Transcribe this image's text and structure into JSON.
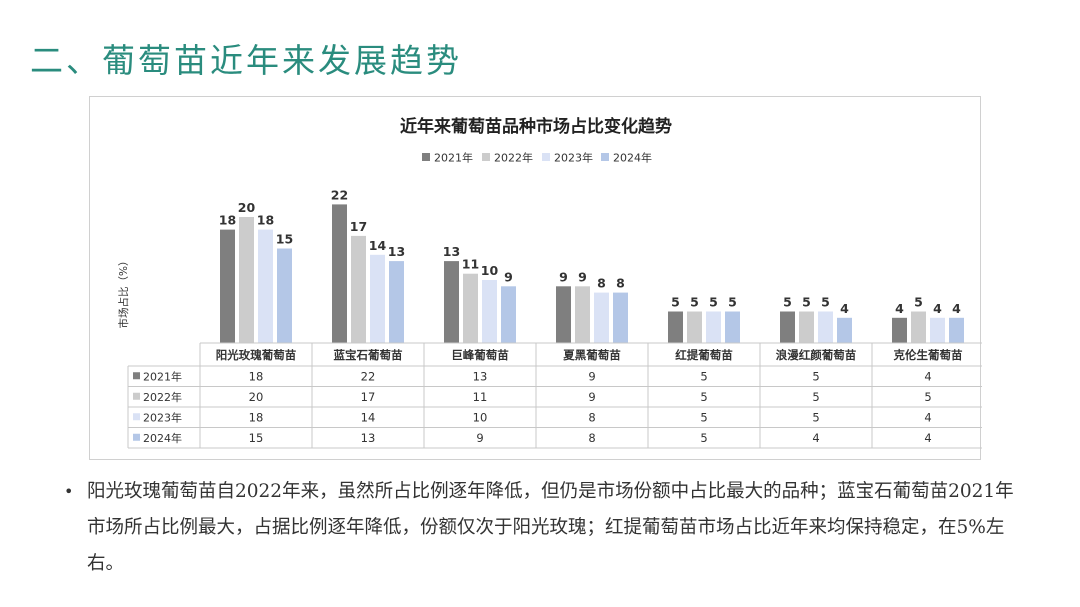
{
  "slide": {
    "title": "二、葡萄苗近年来发展趋势",
    "bullet_marker": "•",
    "bullet_text": "阳光玫瑰葡萄苗自2022年来，虽然所占比例逐年降低，但仍是市场份额中占比最大的品种；蓝宝石葡萄苗2021年市场所占比例最大，占据比例逐年降低，份额仅次于阳光玫瑰；红提葡萄苗市场占比近年来均保持稳定，在5%左右。"
  },
  "chart_data": {
    "type": "bar",
    "title": "近年来葡萄苗品种市场占比变化趋势",
    "ylabel": "市场占比（%）",
    "ylim": [
      0,
      22
    ],
    "grid": false,
    "legend_position": "top",
    "categories": [
      "阳光玫瑰葡萄苗",
      "蓝宝石葡萄苗",
      "巨峰葡萄苗",
      "夏黑葡萄苗",
      "红提葡萄苗",
      "浪漫红颜葡萄苗",
      "克伦生葡萄苗"
    ],
    "series": [
      {
        "name": "2021年",
        "color": "#7f7f7f",
        "values": [
          18,
          22,
          13,
          9,
          5,
          5,
          4
        ]
      },
      {
        "name": "2022年",
        "color": "#cccccc",
        "values": [
          20,
          17,
          11,
          9,
          5,
          5,
          5
        ]
      },
      {
        "name": "2023年",
        "color": "#dae2f5",
        "values": [
          18,
          14,
          10,
          8,
          5,
          5,
          4
        ]
      },
      {
        "name": "2024年",
        "color": "#b4c7e7",
        "values": [
          15,
          13,
          9,
          8,
          5,
          4,
          4
        ]
      }
    ],
    "data_table": true
  },
  "colors": {
    "title": "#2a8c7e",
    "border": "#d0d0d0"
  }
}
